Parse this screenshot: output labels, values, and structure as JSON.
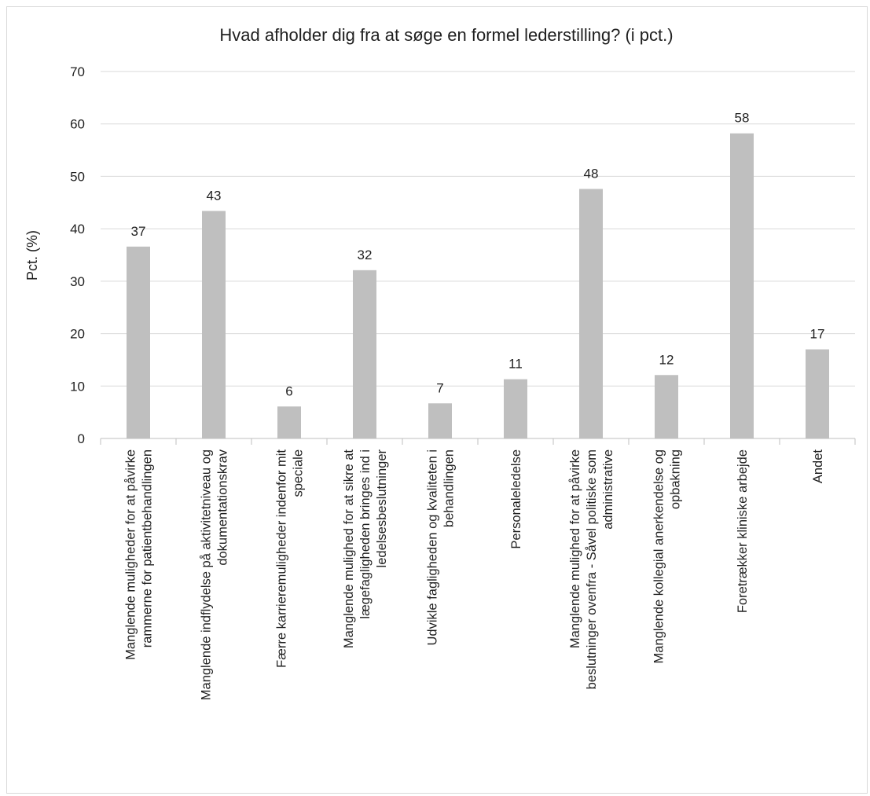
{
  "chart_data": {
    "type": "bar",
    "title": "Hvad afholder dig fra at søge en formel lederstilling? (i pct.)",
    "ylabel": "Pct. (%)",
    "xlabel": "",
    "ylim": [
      0,
      70
    ],
    "yticks": [
      0,
      10,
      20,
      30,
      40,
      50,
      60,
      70
    ],
    "grid": true,
    "bar_color": "#bfbfbf",
    "grid_color": "#d9d9d9",
    "categories": [
      [
        "Manglende muligheder for at påvirke",
        "rammerne for patientbehandlingen"
      ],
      [
        "Manglende indflydelse på aktivitetniveau og",
        "dokumentationskrav"
      ],
      [
        "Færre karrieremuligheder indenfor mit",
        "speciale"
      ],
      [
        "Manglende mulighed for at sikre at",
        "lægefagligheden bringes ind i",
        "ledelsesbeslutninger"
      ],
      [
        "Udvikle fagligheden og kvaliteten i",
        "behandlingen"
      ],
      [
        "Personaleledelse"
      ],
      [
        "Manglende mulighed for at påvirke",
        "beslutninger ovenfra - Såvel politiske som",
        "administrative"
      ],
      [
        "Manglende kollegial anerkendelse og",
        "opbakning"
      ],
      [
        "Foretrækker kliniske arbejde"
      ],
      [
        "Andet"
      ]
    ],
    "values": [
      37,
      43,
      6,
      32,
      7,
      11,
      48,
      12,
      58,
      17
    ],
    "actual_heights": [
      36.6,
      43.4,
      6.1,
      32.1,
      6.7,
      11.3,
      47.6,
      12.1,
      58.2,
      17.0
    ]
  }
}
